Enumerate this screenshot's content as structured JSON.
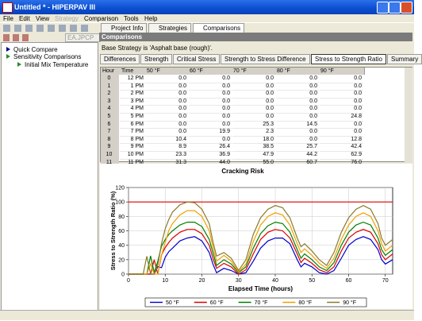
{
  "window": {
    "title": "Untitled * - HIPERPAV III"
  },
  "menu": [
    "File",
    "Edit",
    "View",
    "Strategy",
    "Comparison",
    "Tools",
    "Help"
  ],
  "toolbar": {
    "combo": "EA.JPCP"
  },
  "tabs": [
    "Project Info",
    "Strategies",
    "Comparisons"
  ],
  "panel_header": "Comparisons",
  "tree": [
    "Quick Compare",
    "Sensitivity Comparisons",
    "Initial Mix Temperature"
  ],
  "base_strategy": "Base Strategy is 'Asphalt base (rough)'.",
  "sub_tabs": [
    "Differences",
    "Strength",
    "Critical Stress",
    "Strength to Stress Difference",
    "Stress to Strength Ratio",
    "Summary"
  ],
  "table": {
    "columns": [
      "Hour",
      "Time",
      "50 °F",
      "60 °F",
      "70 °F",
      "80 °F",
      "90 °F"
    ],
    "rows": [
      [
        "0",
        "12 PM",
        "0.0",
        "0.0",
        "0.0",
        "0.0",
        "0.0"
      ],
      [
        "1",
        "1 PM",
        "0.0",
        "0.0",
        "0.0",
        "0.0",
        "0.0"
      ],
      [
        "2",
        "2 PM",
        "0.0",
        "0.0",
        "0.0",
        "0.0",
        "0.0"
      ],
      [
        "3",
        "3 PM",
        "0.0",
        "0.0",
        "0.0",
        "0.0",
        "0.0"
      ],
      [
        "4",
        "4 PM",
        "0.0",
        "0.0",
        "0.0",
        "0.0",
        "0.0"
      ],
      [
        "5",
        "5 PM",
        "0.0",
        "0.0",
        "0.0",
        "0.0",
        "24.8"
      ],
      [
        "6",
        "6 PM",
        "0.0",
        "0.0",
        "25.3",
        "14.5",
        "0.0"
      ],
      [
        "7",
        "7 PM",
        "0.0",
        "19.9",
        "2.3",
        "0.0",
        "0.0"
      ],
      [
        "8",
        "8 PM",
        "10.4",
        "0.0",
        "18.0",
        "0.0",
        "12.8"
      ],
      [
        "9",
        "9 PM",
        "8.9",
        "26.4",
        "38.5",
        "25.7",
        "42.4"
      ],
      [
        "10",
        "10 PM",
        "23.3",
        "36.9",
        "47.9",
        "44.2",
        "62.9"
      ],
      [
        "11",
        "11 PM",
        "31.3",
        "44.0",
        "55.0",
        "60.7",
        "76.0"
      ]
    ]
  },
  "chart_data": {
    "type": "line",
    "title": "Cracking Risk",
    "x_label": "Elapsed Time (hours)",
    "y_label": "Stress to Strength Ratio (%)",
    "x": [
      0,
      4,
      5,
      6,
      7,
      8,
      9,
      10,
      11,
      12,
      14,
      16,
      18,
      20,
      22,
      23,
      24,
      26,
      28,
      30,
      32,
      34,
      36,
      38,
      40,
      42,
      44,
      46,
      47,
      48,
      50,
      52,
      54,
      56,
      58,
      60,
      62,
      64,
      66,
      68,
      69,
      70,
      72
    ],
    "series": [
      {
        "name": "50 °F",
        "color": "#0000cc",
        "values": [
          0,
          0,
          0,
          0,
          0,
          10.4,
          8.9,
          23.3,
          31.3,
          36,
          46,
          50,
          52,
          46,
          30,
          14,
          2,
          8,
          5,
          0,
          2,
          18,
          36,
          46,
          50,
          50,
          42,
          20,
          10,
          15,
          10,
          2,
          0,
          5,
          22,
          40,
          48,
          52,
          48,
          34,
          20,
          14,
          20
        ]
      },
      {
        "name": "60 °F",
        "color": "#dd0000",
        "values": [
          0,
          0,
          0,
          0,
          19.9,
          0,
          26.4,
          36.9,
          44.0,
          50,
          58,
          62,
          62,
          56,
          40,
          22,
          8,
          15,
          10,
          0,
          6,
          28,
          48,
          58,
          62,
          60,
          50,
          28,
          16,
          22,
          15,
          6,
          2,
          10,
          32,
          50,
          58,
          62,
          58,
          42,
          27,
          20,
          28
        ]
      },
      {
        "name": "70 °F",
        "color": "#008000",
        "values": [
          0,
          0,
          0,
          25.3,
          2.3,
          18.0,
          38.5,
          47.9,
          55.0,
          60,
          68,
          72,
          72,
          66,
          48,
          30,
          12,
          20,
          14,
          2,
          10,
          36,
          56,
          67,
          72,
          70,
          58,
          34,
          22,
          28,
          20,
          10,
          5,
          16,
          40,
          58,
          68,
          72,
          68,
          50,
          34,
          26,
          34
        ]
      },
      {
        "name": "80 °F",
        "color": "#f0a000",
        "values": [
          0,
          0,
          0,
          14.5,
          0,
          0,
          25.7,
          44.2,
          60.7,
          70,
          82,
          88,
          88,
          80,
          60,
          38,
          18,
          26,
          18,
          3,
          14,
          45,
          68,
          80,
          85,
          82,
          68,
          42,
          30,
          35,
          26,
          15,
          8,
          22,
          48,
          68,
          80,
          85,
          80,
          60,
          42,
          32,
          40
        ]
      },
      {
        "name": "90 °F",
        "color": "#8b7a2a",
        "values": [
          0,
          0,
          24.8,
          0,
          0,
          12.8,
          42.4,
          62.9,
          76.0,
          86,
          96,
          100,
          99,
          90,
          70,
          45,
          25,
          30,
          22,
          5,
          20,
          55,
          78,
          90,
          95,
          92,
          78,
          50,
          38,
          42,
          32,
          20,
          12,
          30,
          58,
          78,
          90,
          95,
          90,
          70,
          50,
          40,
          48
        ]
      }
    ],
    "threshold": {
      "value": 100,
      "color": "#dd0000"
    },
    "xlim": [
      0,
      72
    ],
    "xticks": [
      0,
      10,
      20,
      30,
      40,
      50,
      60,
      70
    ],
    "ylim": [
      0,
      120
    ],
    "yticks": [
      0,
      20,
      40,
      60,
      80,
      100,
      120
    ],
    "grid": true,
    "legend": "bottom"
  }
}
